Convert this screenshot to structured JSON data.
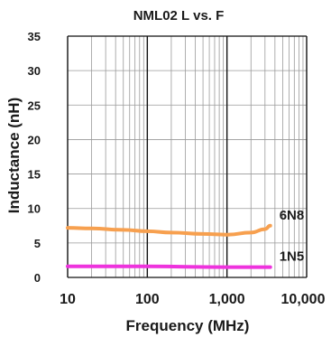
{
  "chart_data": {
    "type": "line",
    "title": "NML02 L vs. F",
    "xlabel": "Frequency (MHz)",
    "ylabel": "Inductance (nH)",
    "x_scale": "log",
    "xlim": [
      10,
      10000
    ],
    "ylim": [
      0,
      35
    ],
    "x_ticks": [
      {
        "value": 10,
        "label": "10"
      },
      {
        "value": 100,
        "label": "100"
      },
      {
        "value": 1000,
        "label": "1,000"
      },
      {
        "value": 10000,
        "label": "10,000"
      }
    ],
    "y_ticks": [
      {
        "value": 0,
        "label": "0"
      },
      {
        "value": 5,
        "label": "5"
      },
      {
        "value": 10,
        "label": "10"
      },
      {
        "value": 15,
        "label": "15"
      },
      {
        "value": 20,
        "label": "20"
      },
      {
        "value": 25,
        "label": "25"
      },
      {
        "value": 30,
        "label": "30"
      },
      {
        "value": 35,
        "label": "35"
      }
    ],
    "grid": true,
    "series": [
      {
        "name": "6N8",
        "color": "#f7a04f",
        "x": [
          10,
          20,
          50,
          100,
          200,
          500,
          1000,
          2000,
          3000,
          3500
        ],
        "y": [
          7.2,
          7.1,
          6.9,
          6.7,
          6.5,
          6.3,
          6.2,
          6.5,
          7.0,
          7.5
        ]
      },
      {
        "name": "1N5",
        "color": "#ee33dd",
        "x": [
          10,
          100,
          1000,
          3500
        ],
        "y": [
          1.6,
          1.6,
          1.5,
          1.5
        ]
      }
    ]
  }
}
